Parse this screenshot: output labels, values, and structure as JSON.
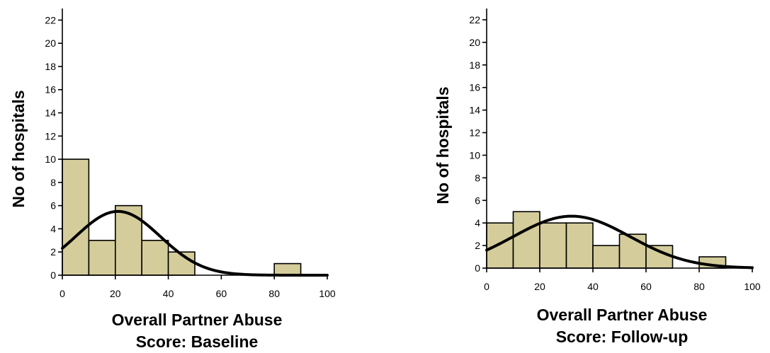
{
  "colors": {
    "bar_fill": "#d4cc9a",
    "stroke": "#000000",
    "background": "#ffffff"
  },
  "chart_data": [
    {
      "type": "bar",
      "chart_kind": "histogram with fitted normal curve",
      "xlabel_line1": "Overall Partner Abuse",
      "xlabel_line2": "Score: Baseline",
      "ylabel": "No of hospitals",
      "xlim": [
        0,
        100
      ],
      "ylim": [
        0,
        23
      ],
      "x_ticks": [
        0,
        20,
        40,
        60,
        80,
        100
      ],
      "y_ticks": [
        0,
        2,
        4,
        6,
        8,
        10,
        12,
        14,
        16,
        18,
        20,
        22
      ],
      "bin_width": 10,
      "bins": [
        {
          "start": 0,
          "end": 10,
          "count": 10
        },
        {
          "start": 10,
          "end": 20,
          "count": 3
        },
        {
          "start": 20,
          "end": 30,
          "count": 6
        },
        {
          "start": 30,
          "end": 40,
          "count": 3
        },
        {
          "start": 40,
          "end": 50,
          "count": 2
        },
        {
          "start": 80,
          "end": 90,
          "count": 1
        }
      ],
      "normal_curve": {
        "mean": 21,
        "sd": 16,
        "peak": 5.5
      },
      "grid": false
    },
    {
      "type": "bar",
      "chart_kind": "histogram with fitted normal curve",
      "xlabel_line1": "Overall Partner Abuse",
      "xlabel_line2": "Score: Follow-up",
      "ylabel": "No of hospitals",
      "xlim": [
        0,
        100
      ],
      "ylim": [
        0,
        23
      ],
      "x_ticks": [
        0,
        20,
        40,
        60,
        80,
        100
      ],
      "y_ticks": [
        0,
        2,
        4,
        6,
        8,
        10,
        12,
        14,
        16,
        18,
        20,
        22
      ],
      "bin_width": 10,
      "bins": [
        {
          "start": 0,
          "end": 10,
          "count": 4
        },
        {
          "start": 10,
          "end": 20,
          "count": 5
        },
        {
          "start": 20,
          "end": 30,
          "count": 4
        },
        {
          "start": 30,
          "end": 40,
          "count": 4
        },
        {
          "start": 40,
          "end": 50,
          "count": 2
        },
        {
          "start": 50,
          "end": 60,
          "count": 3
        },
        {
          "start": 60,
          "end": 70,
          "count": 2
        },
        {
          "start": 80,
          "end": 90,
          "count": 1
        }
      ],
      "normal_curve": {
        "mean": 32,
        "sd": 22,
        "peak": 4.6
      },
      "grid": false
    }
  ]
}
